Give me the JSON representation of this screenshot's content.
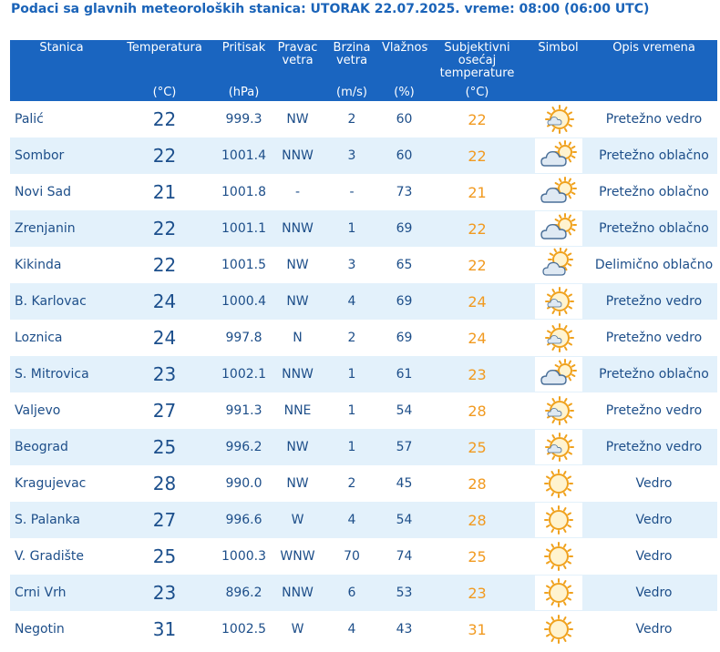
{
  "header": {
    "title": "Podaci sa glavnih meteoroloških stanica:  UTORAK 22.07.2025.  vreme: 08:00 (06:00 UTC)"
  },
  "columns": [
    {
      "key": "station",
      "label": "Stanica",
      "unit": ""
    },
    {
      "key": "temp",
      "label": "Temperatura",
      "unit": "(°C)"
    },
    {
      "key": "pressure",
      "label": "Pritisak",
      "unit": "(hPa)"
    },
    {
      "key": "wind_dir",
      "label": "Pravac vetra",
      "unit": ""
    },
    {
      "key": "wind_speed",
      "label": "Brzina vetra",
      "unit": "(m/s)"
    },
    {
      "key": "humidity",
      "label": "Vlažnost",
      "unit": "(%)"
    },
    {
      "key": "feels_like",
      "label": "Subjektivni osećaj temperature",
      "unit": "(°C)"
    },
    {
      "key": "symbol",
      "label": "Simbol",
      "unit": ""
    },
    {
      "key": "description",
      "label": "Opis vremena",
      "unit": ""
    }
  ],
  "rows": [
    {
      "station": "Palić",
      "temp": "22",
      "pressure": "999.3",
      "wind_dir": "NW",
      "wind_speed": "2",
      "humidity": "60",
      "feels_like": "22",
      "symbol": "sun-small-cloud-icon",
      "description": "Pretežno vedro"
    },
    {
      "station": "Sombor",
      "temp": "22",
      "pressure": "1001.4",
      "wind_dir": "NNW",
      "wind_speed": "3",
      "humidity": "60",
      "feels_like": "22",
      "symbol": "cloud-sun-icon",
      "description": "Pretežno oblačno"
    },
    {
      "station": "Novi Sad",
      "temp": "21",
      "pressure": "1001.8",
      "wind_dir": "-",
      "wind_speed": "-",
      "humidity": "73",
      "feels_like": "21",
      "symbol": "cloud-sun-icon",
      "description": "Pretežno oblačno"
    },
    {
      "station": "Zrenjanin",
      "temp": "22",
      "pressure": "1001.1",
      "wind_dir": "NNW",
      "wind_speed": "1",
      "humidity": "69",
      "feels_like": "22",
      "symbol": "cloud-sun-icon",
      "description": "Pretežno oblačno"
    },
    {
      "station": "Kikinda",
      "temp": "22",
      "pressure": "1001.5",
      "wind_dir": "NW",
      "wind_speed": "3",
      "humidity": "65",
      "feels_like": "22",
      "symbol": "sun-behind-cloud-icon",
      "description": "Delimično oblačno"
    },
    {
      "station": "B. Karlovac",
      "temp": "24",
      "pressure": "1000.4",
      "wind_dir": "NW",
      "wind_speed": "4",
      "humidity": "69",
      "feels_like": "24",
      "symbol": "sun-small-cloud-icon",
      "description": "Pretežno vedro"
    },
    {
      "station": "Loznica",
      "temp": "24",
      "pressure": "997.8",
      "wind_dir": "N",
      "wind_speed": "2",
      "humidity": "69",
      "feels_like": "24",
      "symbol": "sun-small-cloud-icon",
      "description": "Pretežno vedro"
    },
    {
      "station": "S. Mitrovica",
      "temp": "23",
      "pressure": "1002.1",
      "wind_dir": "NNW",
      "wind_speed": "1",
      "humidity": "61",
      "feels_like": "23",
      "symbol": "cloud-sun-icon",
      "description": "Pretežno oblačno"
    },
    {
      "station": "Valjevo",
      "temp": "27",
      "pressure": "991.3",
      "wind_dir": "NNE",
      "wind_speed": "1",
      "humidity": "54",
      "feels_like": "28",
      "symbol": "sun-small-cloud-icon",
      "description": "Pretežno vedro"
    },
    {
      "station": "Beograd",
      "temp": "25",
      "pressure": "996.2",
      "wind_dir": "NW",
      "wind_speed": "1",
      "humidity": "57",
      "feels_like": "25",
      "symbol": "sun-small-cloud-icon",
      "description": "Pretežno vedro"
    },
    {
      "station": "Kragujevac",
      "temp": "28",
      "pressure": "990.0",
      "wind_dir": "NW",
      "wind_speed": "2",
      "humidity": "45",
      "feels_like": "28",
      "symbol": "sun-icon",
      "description": "Vedro"
    },
    {
      "station": "S. Palanka",
      "temp": "27",
      "pressure": "996.6",
      "wind_dir": "W",
      "wind_speed": "4",
      "humidity": "54",
      "feels_like": "28",
      "symbol": "sun-icon",
      "description": "Vedro"
    },
    {
      "station": "V. Gradište",
      "temp": "25",
      "pressure": "1000.3",
      "wind_dir": "WNW",
      "wind_speed": "70",
      "humidity": "74",
      "feels_like": "25",
      "symbol": "sun-icon",
      "description": "Vedro"
    },
    {
      "station": "Crni Vrh",
      "temp": "23",
      "pressure": "896.2",
      "wind_dir": "NNW",
      "wind_speed": "6",
      "humidity": "53",
      "feels_like": "23",
      "symbol": "sun-icon",
      "description": "Vedro"
    },
    {
      "station": "Negotin",
      "temp": "31",
      "pressure": "1002.5",
      "wind_dir": "W",
      "wind_speed": "4",
      "humidity": "43",
      "feels_like": "31",
      "symbol": "sun-icon",
      "description": "Vedro"
    }
  ],
  "colors": {
    "title": "#1a63b8",
    "header_bg": "#1a65c0",
    "row_alt": "#e3f1fb",
    "text": "#1d4e89",
    "feels_like": "#f19a20"
  }
}
